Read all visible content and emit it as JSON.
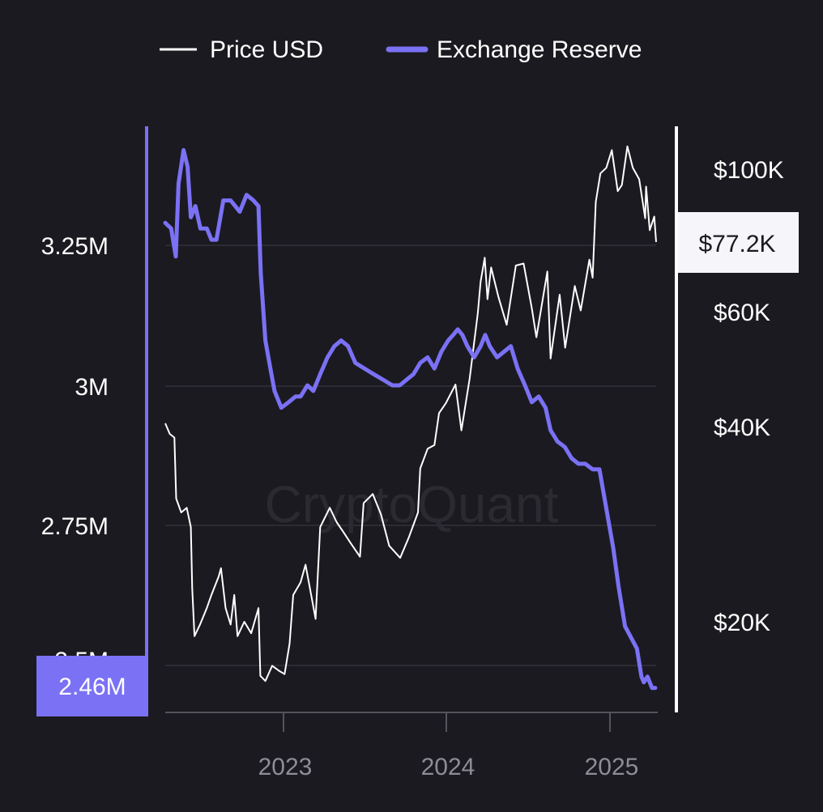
{
  "watermark": "CryptoQuant",
  "legend": [
    {
      "label": "Price USD",
      "color": "#ffffff"
    },
    {
      "label": "Exchange Reserve",
      "color": "#7b71f5"
    }
  ],
  "chart_data": {
    "type": "line",
    "x_range": [
      "2022-04-15",
      "2025-03-24"
    ],
    "x_ticks": [
      {
        "label": "2023",
        "date": "2023-01-01"
      },
      {
        "label": "2024",
        "date": "2024-01-01"
      },
      {
        "label": "2025",
        "date": "2025-01-01"
      }
    ],
    "left_axis": {
      "series": "Exchange Reserve",
      "ylim": [
        2.4,
        3.45
      ],
      "ticks": [
        {
          "label": "3.25M",
          "value": 3.25
        },
        {
          "label": "3M",
          "value": 3.0
        },
        {
          "label": "2.75M",
          "value": 2.75
        },
        {
          "label": "2.5M",
          "value": 2.5
        }
      ],
      "current_value_label": "2.46M",
      "color": "#7b71f5"
    },
    "right_axis": {
      "series": "Price USD",
      "scale": "log",
      "ticks": [
        {
          "label": "$100K",
          "value": 100000
        },
        {
          "label": "$60K",
          "value": 60000
        },
        {
          "label": "$40K",
          "value": 40000
        },
        {
          "label": "$20K",
          "value": 20000
        }
      ],
      "current_value_label": "$77.2K",
      "color": "#ffffff"
    },
    "grid": "horizontal",
    "legend_position": "top",
    "series": [
      {
        "name": "Exchange Reserve",
        "color": "#7b71f5",
        "points": [
          [
            "2022-04-15",
            3.29
          ],
          [
            "2022-04-28",
            3.28
          ],
          [
            "2022-05-08",
            3.23
          ],
          [
            "2022-05-14",
            3.36
          ],
          [
            "2022-05-25",
            3.42
          ],
          [
            "2022-06-03",
            3.39
          ],
          [
            "2022-06-10",
            3.3
          ],
          [
            "2022-06-20",
            3.32
          ],
          [
            "2022-07-01",
            3.28
          ],
          [
            "2022-07-15",
            3.28
          ],
          [
            "2022-07-25",
            3.26
          ],
          [
            "2022-08-05",
            3.26
          ],
          [
            "2022-08-20",
            3.33
          ],
          [
            "2022-09-05",
            3.33
          ],
          [
            "2022-09-25",
            3.31
          ],
          [
            "2022-10-10",
            3.34
          ],
          [
            "2022-10-25",
            3.33
          ],
          [
            "2022-11-05",
            3.32
          ],
          [
            "2022-11-10",
            3.2
          ],
          [
            "2022-11-20",
            3.08
          ],
          [
            "2022-12-01",
            3.03
          ],
          [
            "2022-12-10",
            2.99
          ],
          [
            "2022-12-25",
            2.96
          ],
          [
            "2023-01-10",
            2.97
          ],
          [
            "2023-01-25",
            2.98
          ],
          [
            "2023-02-05",
            2.98
          ],
          [
            "2023-02-20",
            3.0
          ],
          [
            "2023-03-05",
            2.99
          ],
          [
            "2023-03-20",
            3.02
          ],
          [
            "2023-04-05",
            3.05
          ],
          [
            "2023-04-20",
            3.07
          ],
          [
            "2023-05-05",
            3.08
          ],
          [
            "2023-05-20",
            3.07
          ],
          [
            "2023-06-05",
            3.04
          ],
          [
            "2023-06-25",
            3.03
          ],
          [
            "2023-07-15",
            3.02
          ],
          [
            "2023-08-05",
            3.01
          ],
          [
            "2023-08-25",
            3.0
          ],
          [
            "2023-09-10",
            3.0
          ],
          [
            "2023-09-25",
            3.01
          ],
          [
            "2023-10-10",
            3.02
          ],
          [
            "2023-10-25",
            3.04
          ],
          [
            "2023-11-10",
            3.05
          ],
          [
            "2023-11-25",
            3.03
          ],
          [
            "2023-12-10",
            3.06
          ],
          [
            "2023-12-25",
            3.08
          ],
          [
            "2024-01-05",
            3.09
          ],
          [
            "2024-01-15",
            3.1
          ],
          [
            "2024-01-25",
            3.09
          ],
          [
            "2024-02-05",
            3.07
          ],
          [
            "2024-02-20",
            3.05
          ],
          [
            "2024-03-05",
            3.07
          ],
          [
            "2024-03-15",
            3.09
          ],
          [
            "2024-03-25",
            3.07
          ],
          [
            "2024-04-10",
            3.05
          ],
          [
            "2024-04-25",
            3.06
          ],
          [
            "2024-05-10",
            3.07
          ],
          [
            "2024-05-25",
            3.03
          ],
          [
            "2024-06-10",
            3.0
          ],
          [
            "2024-06-25",
            2.97
          ],
          [
            "2024-07-10",
            2.98
          ],
          [
            "2024-07-25",
            2.96
          ],
          [
            "2024-08-05",
            2.92
          ],
          [
            "2024-08-20",
            2.9
          ],
          [
            "2024-09-05",
            2.89
          ],
          [
            "2024-09-20",
            2.87
          ],
          [
            "2024-10-05",
            2.86
          ],
          [
            "2024-10-20",
            2.86
          ],
          [
            "2024-11-05",
            2.85
          ],
          [
            "2024-11-20",
            2.85
          ],
          [
            "2024-12-05",
            2.78
          ],
          [
            "2024-12-20",
            2.71
          ],
          [
            "2025-01-01",
            2.64
          ],
          [
            "2025-01-15",
            2.57
          ],
          [
            "2025-01-28",
            2.55
          ],
          [
            "2025-02-10",
            2.53
          ],
          [
            "2025-02-20",
            2.48
          ],
          [
            "2025-02-25",
            2.47
          ],
          [
            "2025-03-05",
            2.48
          ],
          [
            "2025-03-15",
            2.46
          ],
          [
            "2025-03-22",
            2.46
          ]
        ]
      },
      {
        "name": "Price USD",
        "color": "#ffffff",
        "points": [
          [
            "2022-04-15",
            40500
          ],
          [
            "2022-04-25",
            39000
          ],
          [
            "2022-05-05",
            38500
          ],
          [
            "2022-05-09",
            31000
          ],
          [
            "2022-05-20",
            29500
          ],
          [
            "2022-06-01",
            30000
          ],
          [
            "2022-06-10",
            28000
          ],
          [
            "2022-06-13",
            22500
          ],
          [
            "2022-06-18",
            19000
          ],
          [
            "2022-06-30",
            19800
          ],
          [
            "2022-07-15",
            21000
          ],
          [
            "2022-07-25",
            22000
          ],
          [
            "2022-08-10",
            23500
          ],
          [
            "2022-08-15",
            24200
          ],
          [
            "2022-08-25",
            21000
          ],
          [
            "2022-09-05",
            19800
          ],
          [
            "2022-09-13",
            22000
          ],
          [
            "2022-09-20",
            19000
          ],
          [
            "2022-10-05",
            20000
          ],
          [
            "2022-10-20",
            19200
          ],
          [
            "2022-11-05",
            21000
          ],
          [
            "2022-11-09",
            16500
          ],
          [
            "2022-11-20",
            16200
          ],
          [
            "2022-12-05",
            17100
          ],
          [
            "2022-12-20",
            16800
          ],
          [
            "2023-01-01",
            16600
          ],
          [
            "2023-01-12",
            18500
          ],
          [
            "2023-01-20",
            22000
          ],
          [
            "2023-02-05",
            23000
          ],
          [
            "2023-02-16",
            24500
          ],
          [
            "2023-03-10",
            20200
          ],
          [
            "2023-03-20",
            28000
          ],
          [
            "2023-04-10",
            30000
          ],
          [
            "2023-04-25",
            28500
          ],
          [
            "2023-05-10",
            27500
          ],
          [
            "2023-05-25",
            26500
          ],
          [
            "2023-06-15",
            25200
          ],
          [
            "2023-06-23",
            30500
          ],
          [
            "2023-07-13",
            31500
          ],
          [
            "2023-07-31",
            29300
          ],
          [
            "2023-08-18",
            26200
          ],
          [
            "2023-09-11",
            25100
          ],
          [
            "2023-09-30",
            27000
          ],
          [
            "2023-10-20",
            29500
          ],
          [
            "2023-10-25",
            34500
          ],
          [
            "2023-11-10",
            37000
          ],
          [
            "2023-11-25",
            37500
          ],
          [
            "2023-12-05",
            42000
          ],
          [
            "2023-12-20",
            43500
          ],
          [
            "2024-01-10",
            46500
          ],
          [
            "2024-01-23",
            39500
          ],
          [
            "2024-02-10",
            47500
          ],
          [
            "2024-02-28",
            60000
          ],
          [
            "2024-03-05",
            67000
          ],
          [
            "2024-03-14",
            73000
          ],
          [
            "2024-03-20",
            63000
          ],
          [
            "2024-03-28",
            70500
          ],
          [
            "2024-04-13",
            63500
          ],
          [
            "2024-05-01",
            57500
          ],
          [
            "2024-05-21",
            71000
          ],
          [
            "2024-06-07",
            71500
          ],
          [
            "2024-06-25",
            61000
          ],
          [
            "2024-07-05",
            55000
          ],
          [
            "2024-07-29",
            69500
          ],
          [
            "2024-08-05",
            51000
          ],
          [
            "2024-08-25",
            64000
          ],
          [
            "2024-09-06",
            53000
          ],
          [
            "2024-09-27",
            66000
          ],
          [
            "2024-10-10",
            60500
          ],
          [
            "2024-10-29",
            72500
          ],
          [
            "2024-11-05",
            68000
          ],
          [
            "2024-11-12",
            89000
          ],
          [
            "2024-11-22",
            98500
          ],
          [
            "2024-12-05",
            100500
          ],
          [
            "2024-12-17",
            107000
          ],
          [
            "2024-12-30",
            92500
          ],
          [
            "2025-01-08",
            94500
          ],
          [
            "2025-01-20",
            108500
          ],
          [
            "2025-02-01",
            100500
          ],
          [
            "2025-02-15",
            96500
          ],
          [
            "2025-02-28",
            84000
          ],
          [
            "2025-03-02",
            94000
          ],
          [
            "2025-03-10",
            80500
          ],
          [
            "2025-03-20",
            84500
          ],
          [
            "2025-03-24",
            77200
          ]
        ]
      }
    ]
  }
}
